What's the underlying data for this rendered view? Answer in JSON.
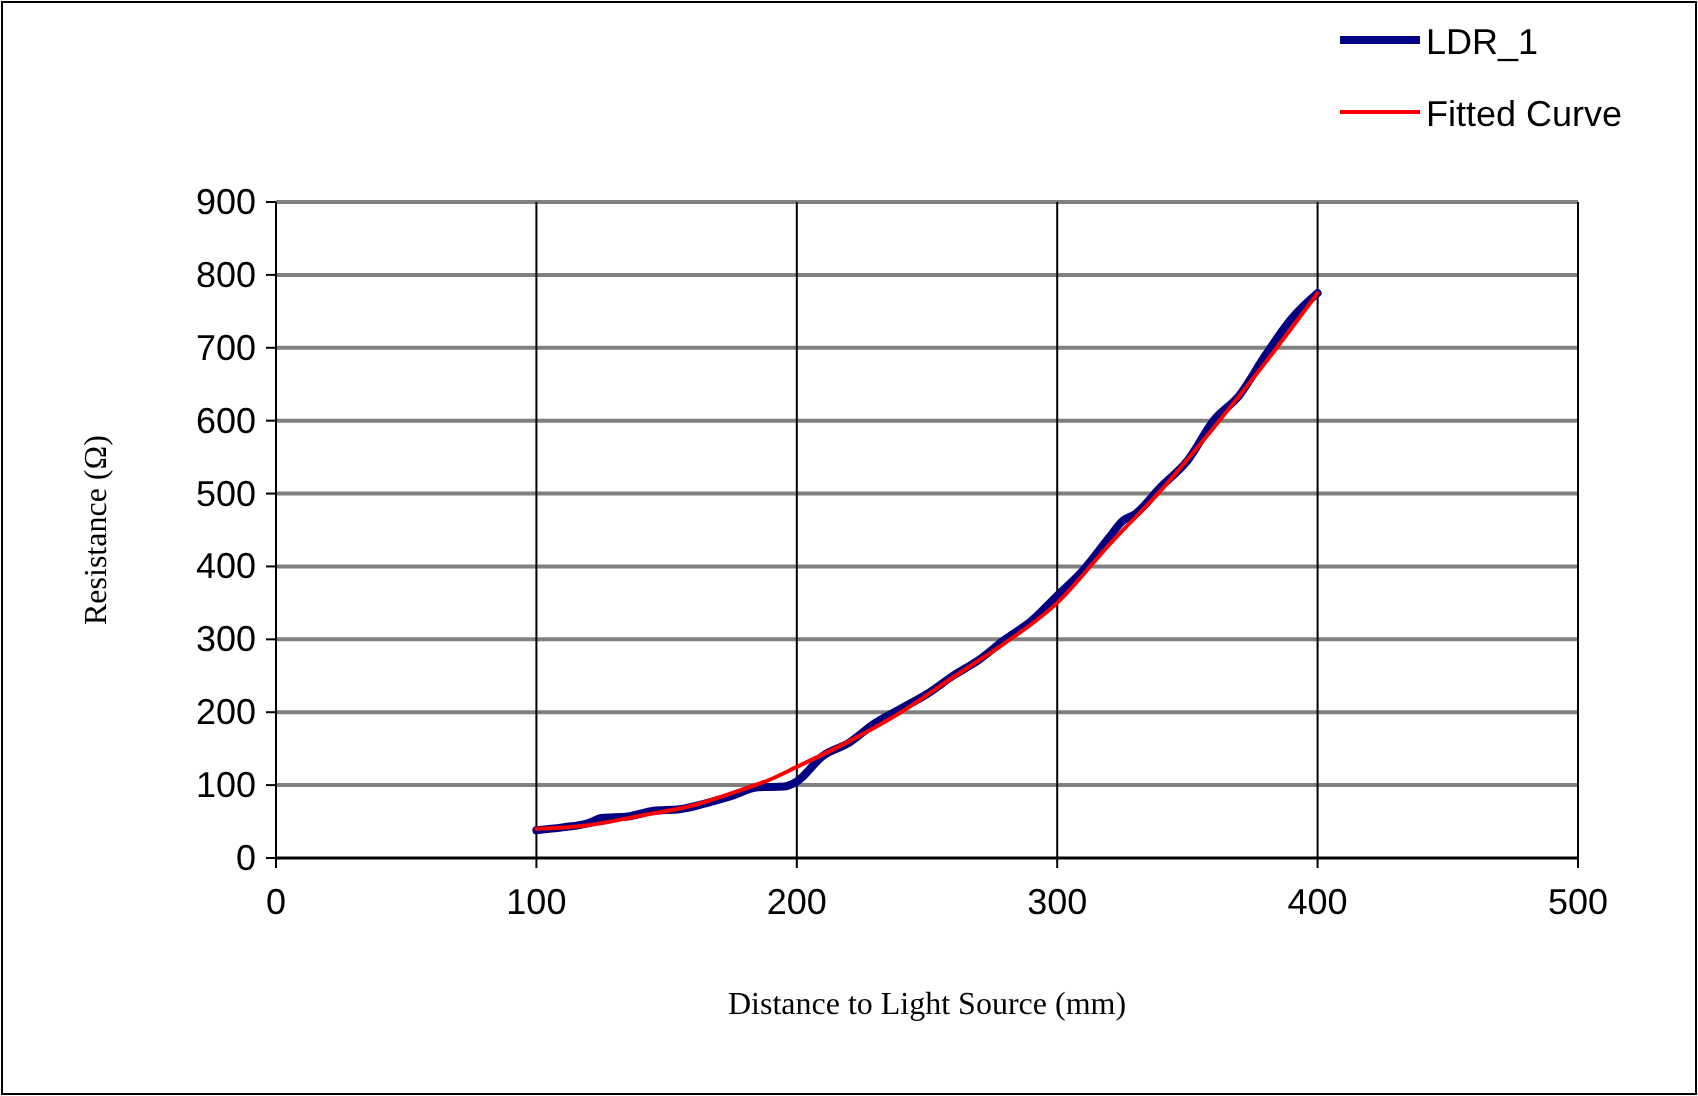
{
  "chart_data": {
    "type": "line",
    "xlabel": "Distance to Light Source (mm)",
    "ylabel": "Resistance (Ω)",
    "xlim": [
      0,
      500
    ],
    "xticks": [
      0,
      100,
      200,
      300,
      400,
      500
    ],
    "ylim": [
      0,
      900
    ],
    "yticks": [
      0,
      100,
      200,
      300,
      400,
      500,
      600,
      700,
      800,
      900
    ],
    "grid": true,
    "legend": "top right",
    "marker": "none",
    "series": [
      {
        "name": "LDR_1",
        "color": "#000080",
        "x": [
          100,
          110,
          120,
          125,
          135,
          145,
          155,
          165,
          175,
          185,
          195,
          200,
          210,
          220,
          230,
          240,
          250,
          260,
          270,
          280,
          290,
          300,
          310,
          320,
          325,
          330,
          340,
          350,
          360,
          370,
          380,
          390,
          400
        ],
        "values": [
          38,
          42,
          48,
          55,
          57,
          65,
          67,
          75,
          85,
          97,
          98,
          105,
          140,
          158,
          185,
          205,
          225,
          250,
          272,
          300,
          325,
          360,
          395,
          440,
          462,
          472,
          510,
          545,
          600,
          635,
          690,
          740,
          775
        ]
      },
      {
        "name": "Fitted Curve",
        "color": "#ff0000",
        "x": [
          100,
          120,
          140,
          160,
          180,
          190,
          200,
          220,
          240,
          260,
          280,
          300,
          320,
          340,
          360,
          380,
          400
        ],
        "values": [
          40,
          45,
          58,
          72,
          95,
          108,
          125,
          160,
          200,
          248,
          295,
          350,
          430,
          505,
          590,
          680,
          775
        ]
      }
    ]
  }
}
